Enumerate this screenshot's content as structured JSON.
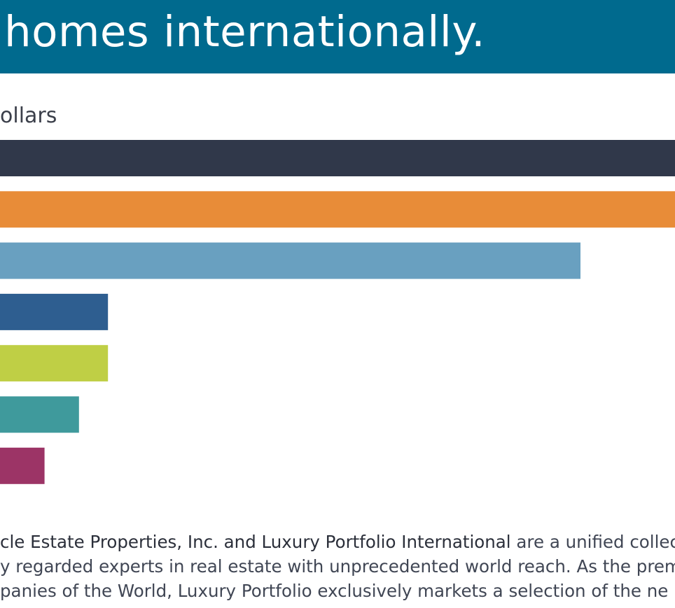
{
  "header": {
    "title": "homes internationally."
  },
  "chart_data": {
    "type": "bar",
    "orientation": "horizontal",
    "unit_label": "ollars",
    "title": "",
    "xlabel": "",
    "ylabel": "",
    "categories": [
      "",
      "",
      "",
      "",
      "",
      "",
      ""
    ],
    "values": [
      100,
      100,
      86,
      16,
      16,
      11.7,
      6.6
    ],
    "colors": [
      "#30384a",
      "#e88c38",
      "#69a0c0",
      "#2e5e90",
      "#bfcf45",
      "#3f9a9c",
      "#9c3466"
    ],
    "xlim": [
      0,
      100
    ],
    "grid": false,
    "legend": "none"
  },
  "body": {
    "line1_strong": "cle Estate Properties, Inc. and Luxury Portfolio International",
    "line1_rest": " are a unified collec",
    "line2": "y regarded experts in real estate with unprecedented world reach. As the premium",
    "line3": "panies of the World, Luxury Portfolio exclusively markets a selection of the ne"
  }
}
